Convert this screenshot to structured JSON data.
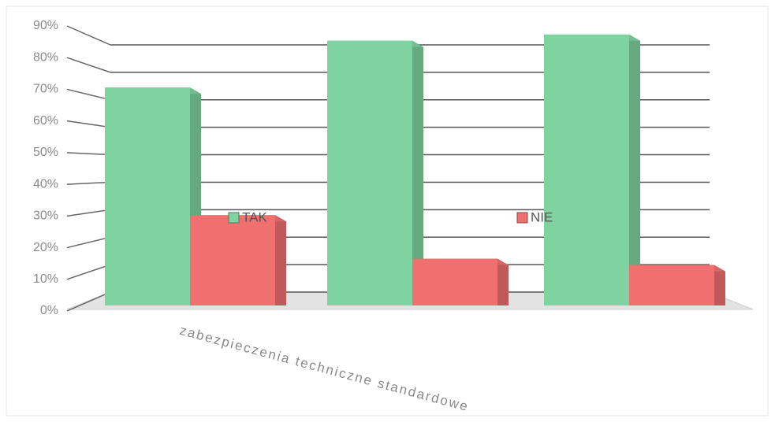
{
  "chart_data": {
    "type": "bar3d",
    "categories": [
      "zabezpieczenia techniczne standardowe",
      null,
      null
    ],
    "series": [
      {
        "name": "TAK",
        "color": "#7fd3a0",
        "values": [
          70,
          85,
          87
        ]
      },
      {
        "name": "NIE",
        "color": "#f07070",
        "values": [
          29,
          15,
          13
        ]
      }
    ],
    "ylim": [
      0,
      90
    ],
    "yticks": [
      {
        "value": 0,
        "label": "0%"
      },
      {
        "value": 10,
        "label": "10%"
      },
      {
        "value": 20,
        "label": "20%"
      },
      {
        "value": 30,
        "label": "30%"
      },
      {
        "value": 40,
        "label": "40%"
      },
      {
        "value": 50,
        "label": "50%"
      },
      {
        "value": 60,
        "label": "60%"
      },
      {
        "value": 70,
        "label": "70%"
      },
      {
        "value": 80,
        "label": "80%"
      },
      {
        "value": 90,
        "label": "90%"
      }
    ],
    "grid": true
  }
}
